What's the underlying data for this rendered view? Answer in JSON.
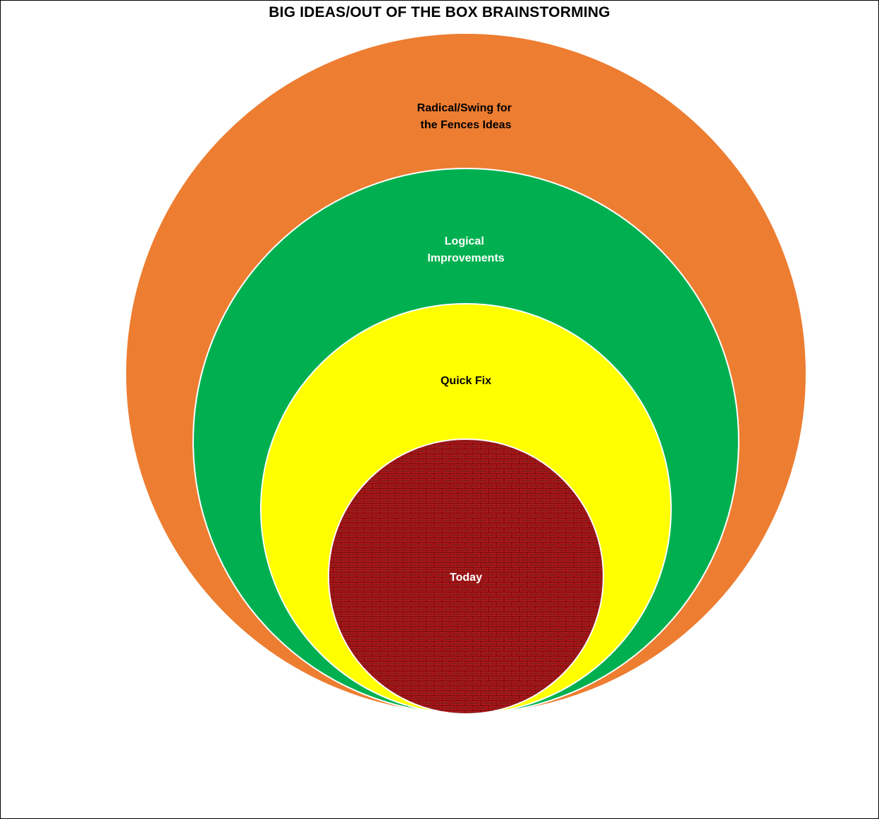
{
  "title": "BIG IDEAS/OUT OF THE BOX BRAINSTORMING",
  "rings": [
    {
      "label_lines": [
        "Radical/Swing for",
        "the Fences Ideas"
      ],
      "fill": "#ED7D31",
      "text_color": "#000000"
    },
    {
      "label_lines": [
        "Logical",
        "Improvements"
      ],
      "fill": "#00B050",
      "text_color": "#FFFFFF"
    },
    {
      "label_lines": [
        "Quick Fix"
      ],
      "fill": "#FFFF00",
      "text_color": "#000000"
    },
    {
      "label_lines": [
        "Today"
      ],
      "fill": "#8B1A1A",
      "pattern": "red-brick",
      "text_color": "#FFFFFF"
    }
  ]
}
